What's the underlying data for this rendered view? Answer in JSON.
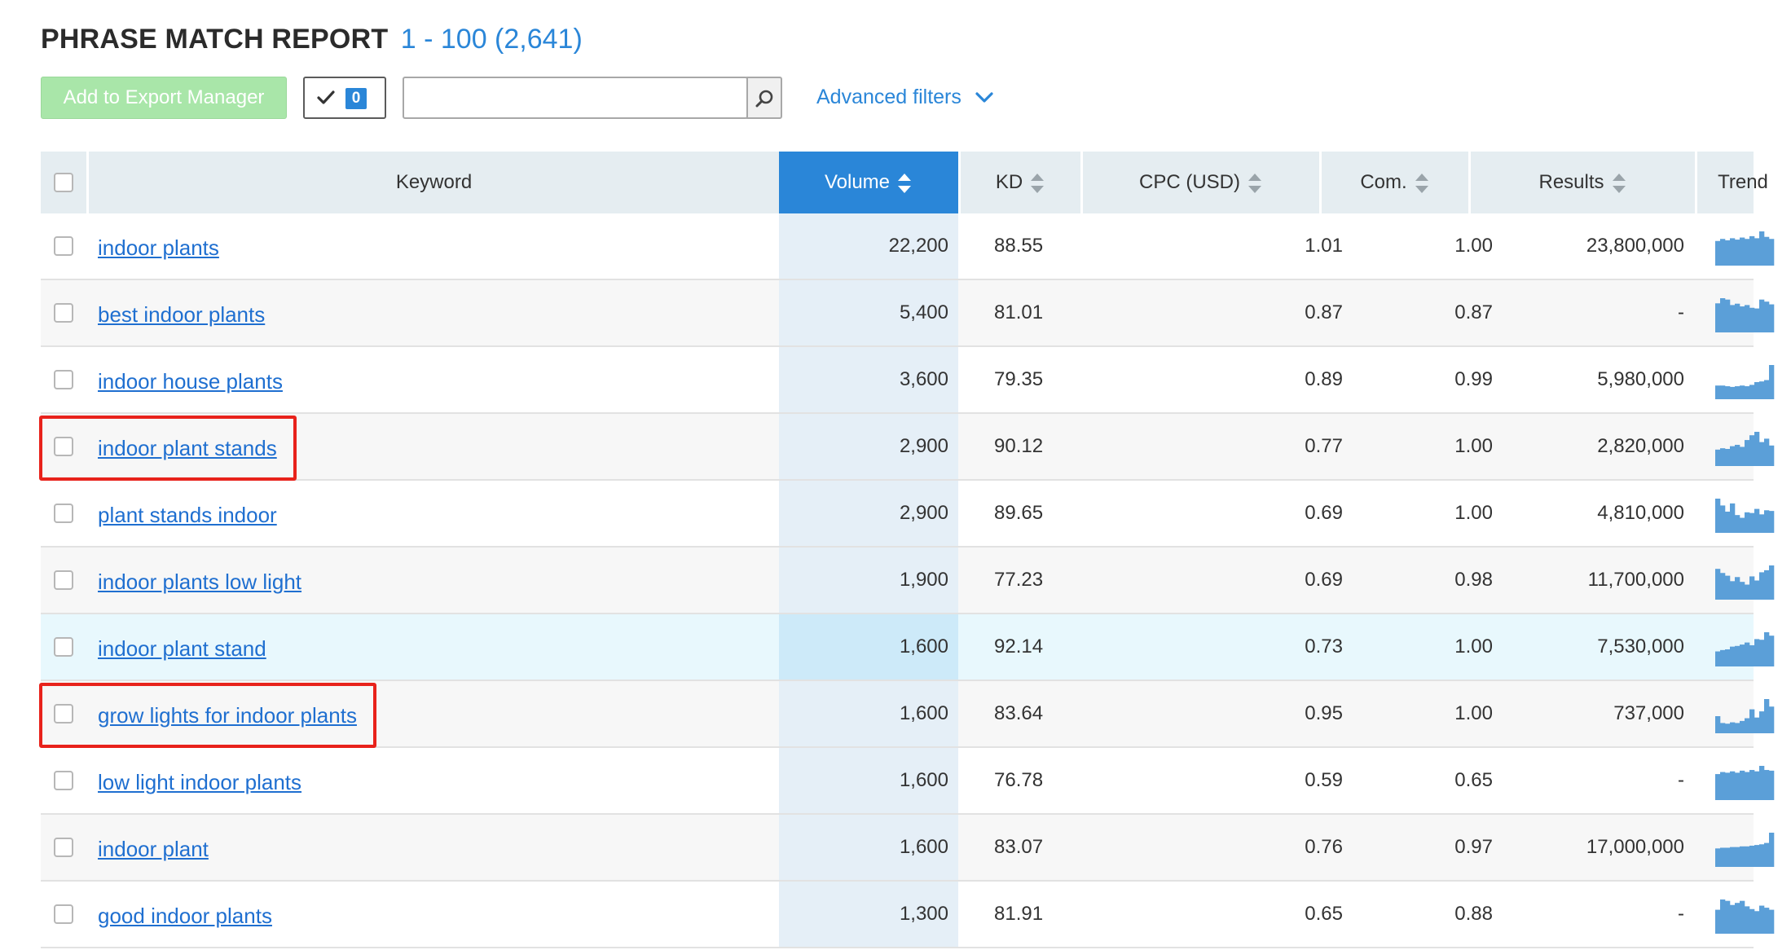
{
  "report": {
    "title": "PHRASE MATCH REPORT",
    "range": "1 - 100 (2,641)"
  },
  "toolbar": {
    "export_label": "Add to Export Manager",
    "selected_count": "0",
    "search_value": "",
    "advanced_filters_label": "Advanced filters"
  },
  "table": {
    "columns": {
      "keyword": "Keyword",
      "volume": "Volume",
      "kd": "KD",
      "cpc": "CPC (USD)",
      "com": "Com.",
      "results": "Results",
      "trend": "Trend"
    },
    "sorted_column": "volume",
    "rows": [
      {
        "keyword": "indoor plants",
        "volume": "22,200",
        "kd": "88.55",
        "cpc": "1.01",
        "com": "1.00",
        "results": "23,800,000",
        "trend": [
          0.72,
          0.78,
          0.74,
          0.8,
          0.76,
          0.82,
          0.78,
          0.86,
          0.8,
          1.0,
          0.84,
          0.78
        ]
      },
      {
        "keyword": "best indoor plants",
        "volume": "5,400",
        "kd": "81.01",
        "cpc": "0.87",
        "com": "0.87",
        "results": "-",
        "trend": [
          0.85,
          1.0,
          0.96,
          0.8,
          0.84,
          0.76,
          0.8,
          0.72,
          0.7,
          0.96,
          0.9,
          0.82
        ]
      },
      {
        "keyword": "indoor house plants",
        "volume": "3,600",
        "kd": "79.35",
        "cpc": "0.89",
        "com": "0.99",
        "results": "5,980,000",
        "trend": [
          0.4,
          0.4,
          0.38,
          0.36,
          0.38,
          0.4,
          0.38,
          0.42,
          0.5,
          0.52,
          0.56,
          1.0
        ]
      },
      {
        "keyword": "indoor plant stands",
        "volume": "2,900",
        "kd": "90.12",
        "cpc": "0.77",
        "com": "1.00",
        "results": "2,820,000",
        "trend": [
          0.48,
          0.52,
          0.5,
          0.58,
          0.62,
          0.56,
          0.76,
          0.9,
          1.0,
          0.7,
          0.8,
          0.6
        ]
      },
      {
        "keyword": "plant stands indoor",
        "volume": "2,900",
        "kd": "89.65",
        "cpc": "0.69",
        "com": "1.00",
        "results": "4,810,000",
        "trend": [
          1.0,
          0.8,
          0.62,
          0.86,
          0.52,
          0.44,
          0.6,
          0.58,
          0.7,
          0.54,
          0.66,
          0.64
        ]
      },
      {
        "keyword": "indoor plants low light",
        "volume": "1,900",
        "kd": "77.23",
        "cpc": "0.69",
        "com": "0.98",
        "results": "11,700,000",
        "trend": [
          0.9,
          0.78,
          0.7,
          0.54,
          0.66,
          0.52,
          0.44,
          0.68,
          0.56,
          0.8,
          0.86,
          1.0
        ]
      },
      {
        "keyword": "indoor plant stand",
        "volume": "1,600",
        "kd": "92.14",
        "cpc": "0.73",
        "com": "1.00",
        "results": "7,530,000",
        "trend": [
          0.44,
          0.48,
          0.5,
          0.58,
          0.6,
          0.64,
          0.7,
          0.62,
          0.8,
          0.78,
          1.0,
          0.9
        ]
      },
      {
        "keyword": "grow lights for indoor plants",
        "volume": "1,600",
        "kd": "83.64",
        "cpc": "0.95",
        "com": "1.00",
        "results": "737,000",
        "trend": [
          0.5,
          0.3,
          0.28,
          0.32,
          0.3,
          0.36,
          0.44,
          0.7,
          0.46,
          0.64,
          1.0,
          0.78
        ]
      },
      {
        "keyword": "low light indoor plants",
        "volume": "1,600",
        "kd": "76.78",
        "cpc": "0.59",
        "com": "0.65",
        "results": "-",
        "trend": [
          0.76,
          0.82,
          0.8,
          0.84,
          0.8,
          0.86,
          0.82,
          0.88,
          0.84,
          1.0,
          0.88,
          0.86
        ]
      },
      {
        "keyword": "indoor plant",
        "volume": "1,600",
        "kd": "83.07",
        "cpc": "0.76",
        "com": "0.97",
        "results": "17,000,000",
        "trend": [
          0.54,
          0.56,
          0.56,
          0.58,
          0.58,
          0.6,
          0.6,
          0.62,
          0.64,
          0.66,
          0.7,
          1.0
        ]
      },
      {
        "keyword": "good indoor plants",
        "volume": "1,300",
        "kd": "81.91",
        "cpc": "0.65",
        "com": "0.88",
        "results": "-",
        "trend": [
          0.7,
          1.0,
          0.96,
          0.84,
          0.9,
          0.96,
          0.8,
          0.72,
          0.66,
          0.82,
          0.76,
          0.7
        ]
      }
    ],
    "highlighted_row_index": 6,
    "annotated_row_indices": [
      3,
      7
    ],
    "colors": {
      "accent": "#2a86d8",
      "link": "#1f6fd0",
      "annotation": "#e8221b",
      "trend_bar": "#5b9fd8",
      "export_button": "#a9e6a9"
    }
  }
}
